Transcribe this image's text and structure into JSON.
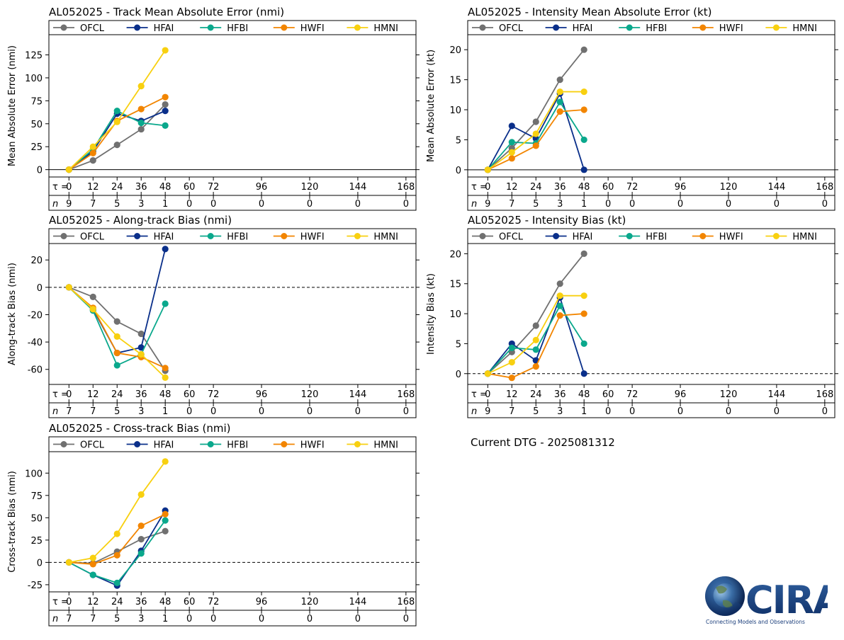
{
  "colors": {
    "OFCL": "#707070",
    "HFAI": "#0a2f8a",
    "HFBI": "#0aa88c",
    "HWFI": "#f28500",
    "HMNI": "#f8d010"
  },
  "series_names": [
    "OFCL",
    "HFAI",
    "HFBI",
    "HWFI",
    "HMNI"
  ],
  "tau_label": "τ = ",
  "n_label": "n",
  "current_dtg": "Current DTG - 2025081312",
  "logo": {
    "text": "CIRA",
    "tagline": "Connecting Models and Observations"
  },
  "chart_data": [
    {
      "id": "track-mae",
      "type": "line",
      "title": "AL052025 - Track Mean Absolute Error (nmi)",
      "ylabel": "Mean Absolute Error (nmi)",
      "ylim": [
        -8,
        147
      ],
      "yticks": [
        0,
        25,
        50,
        75,
        100,
        125
      ],
      "zero_line": false,
      "tau": [
        0,
        12,
        24,
        36,
        48,
        60,
        72,
        96,
        120,
        144,
        168
      ],
      "n": [
        9,
        7,
        5,
        3,
        1,
        0,
        0,
        0,
        0,
        0,
        0
      ],
      "x": [
        0,
        12,
        24,
        36,
        48
      ],
      "series": [
        {
          "name": "OFCL",
          "values": [
            0,
            10,
            27,
            44,
            71
          ]
        },
        {
          "name": "HFAI",
          "values": [
            0,
            20,
            61,
            53,
            64
          ]
        },
        {
          "name": "HFBI",
          "values": [
            0,
            22,
            64,
            51,
            48
          ]
        },
        {
          "name": "HWFI",
          "values": [
            0,
            18,
            53,
            66,
            79
          ]
        },
        {
          "name": "HMNI",
          "values": [
            0,
            25,
            52,
            91,
            130
          ]
        }
      ]
    },
    {
      "id": "intensity-mae",
      "type": "line",
      "title": "AL052025 - Intensity Mean Absolute Error (kt)",
      "ylabel": "Mean Absolute Error (kt)",
      "ylim": [
        -1.2,
        22.5
      ],
      "yticks": [
        0,
        5,
        10,
        15,
        20
      ],
      "zero_line": false,
      "tau": [
        0,
        12,
        24,
        36,
        48,
        60,
        72,
        96,
        120,
        144,
        168
      ],
      "n": [
        9,
        7,
        5,
        3,
        1,
        0,
        0,
        0,
        0,
        0,
        0
      ],
      "x": [
        0,
        12,
        24,
        36,
        48
      ],
      "series": [
        {
          "name": "OFCL",
          "values": [
            0,
            3.6,
            8,
            15,
            20
          ]
        },
        {
          "name": "HFAI",
          "values": [
            0,
            7.3,
            5.2,
            12.7,
            0
          ]
        },
        {
          "name": "HFBI",
          "values": [
            0,
            4.6,
            4.4,
            11.3,
            5
          ]
        },
        {
          "name": "HWFI",
          "values": [
            0,
            1.9,
            4,
            9.7,
            10
          ]
        },
        {
          "name": "HMNI",
          "values": [
            0,
            2.9,
            6,
            13,
            13
          ]
        }
      ]
    },
    {
      "id": "along-track-bias",
      "type": "line",
      "title": "AL052025 - Along-track Bias (nmi)",
      "ylabel": "Along-track Bias (nmi)",
      "ylim": [
        -71,
        32
      ],
      "yticks": [
        -60,
        -40,
        -20,
        0,
        20
      ],
      "zero_line": true,
      "tau": [
        0,
        12,
        24,
        36,
        48,
        60,
        72,
        96,
        120,
        144,
        168
      ],
      "n": [
        7,
        7,
        5,
        3,
        1,
        0,
        0,
        0,
        0,
        0,
        0
      ],
      "x": [
        0,
        12,
        24,
        36,
        48
      ],
      "series": [
        {
          "name": "OFCL",
          "values": [
            0,
            -7,
            -25,
            -34,
            -61
          ]
        },
        {
          "name": "HFAI",
          "values": [
            0,
            -16,
            -48,
            -44,
            28
          ]
        },
        {
          "name": "HFBI",
          "values": [
            0,
            -17,
            -57,
            -49,
            -12
          ]
        },
        {
          "name": "HWFI",
          "values": [
            0,
            -15,
            -48,
            -51,
            -59
          ]
        },
        {
          "name": "HMNI",
          "values": [
            0,
            -16,
            -36,
            -49,
            -66
          ]
        }
      ]
    },
    {
      "id": "intensity-bias",
      "type": "line",
      "title": "AL052025 - Intensity Bias (kt)",
      "ylabel": "Intensity Bias (kt)",
      "ylim": [
        -1.8,
        21.7
      ],
      "yticks": [
        0,
        5,
        10,
        15,
        20
      ],
      "zero_line": true,
      "tau": [
        0,
        12,
        24,
        36,
        48,
        60,
        72,
        96,
        120,
        144,
        168
      ],
      "n": [
        9,
        7,
        5,
        3,
        1,
        0,
        0,
        0,
        0,
        0,
        0
      ],
      "x": [
        0,
        12,
        24,
        36,
        48
      ],
      "series": [
        {
          "name": "OFCL",
          "values": [
            0,
            3.6,
            8,
            15,
            20
          ]
        },
        {
          "name": "HFAI",
          "values": [
            0,
            5,
            2.2,
            12.7,
            0
          ]
        },
        {
          "name": "HFBI",
          "values": [
            0,
            4.3,
            4,
            11.3,
            5
          ]
        },
        {
          "name": "HWFI",
          "values": [
            0,
            -0.7,
            1.2,
            9.7,
            10
          ]
        },
        {
          "name": "HMNI",
          "values": [
            0,
            1.9,
            5.6,
            13,
            13
          ]
        }
      ]
    },
    {
      "id": "cross-track-bias",
      "type": "line",
      "title": "AL052025 - Cross-track Bias (nmi)",
      "ylabel": "Cross-track Bias (nmi)",
      "ylim": [
        -33,
        124
      ],
      "yticks": [
        -25,
        0,
        25,
        50,
        75,
        100
      ],
      "zero_line": true,
      "tau": [
        0,
        12,
        24,
        36,
        48,
        60,
        72,
        96,
        120,
        144,
        168
      ],
      "n": [
        7,
        7,
        5,
        3,
        1,
        0,
        0,
        0,
        0,
        0,
        0
      ],
      "x": [
        0,
        12,
        24,
        36,
        48
      ],
      "series": [
        {
          "name": "OFCL",
          "values": [
            0,
            -1,
            12,
            26,
            35
          ]
        },
        {
          "name": "HFAI",
          "values": [
            0,
            -14,
            -26,
            13,
            58
          ]
        },
        {
          "name": "HFBI",
          "values": [
            0,
            -14,
            -23,
            10,
            47
          ]
        },
        {
          "name": "HWFI",
          "values": [
            0,
            -2,
            8,
            41,
            54
          ]
        },
        {
          "name": "HMNI",
          "values": [
            0,
            5,
            32,
            76,
            113
          ]
        }
      ]
    }
  ]
}
